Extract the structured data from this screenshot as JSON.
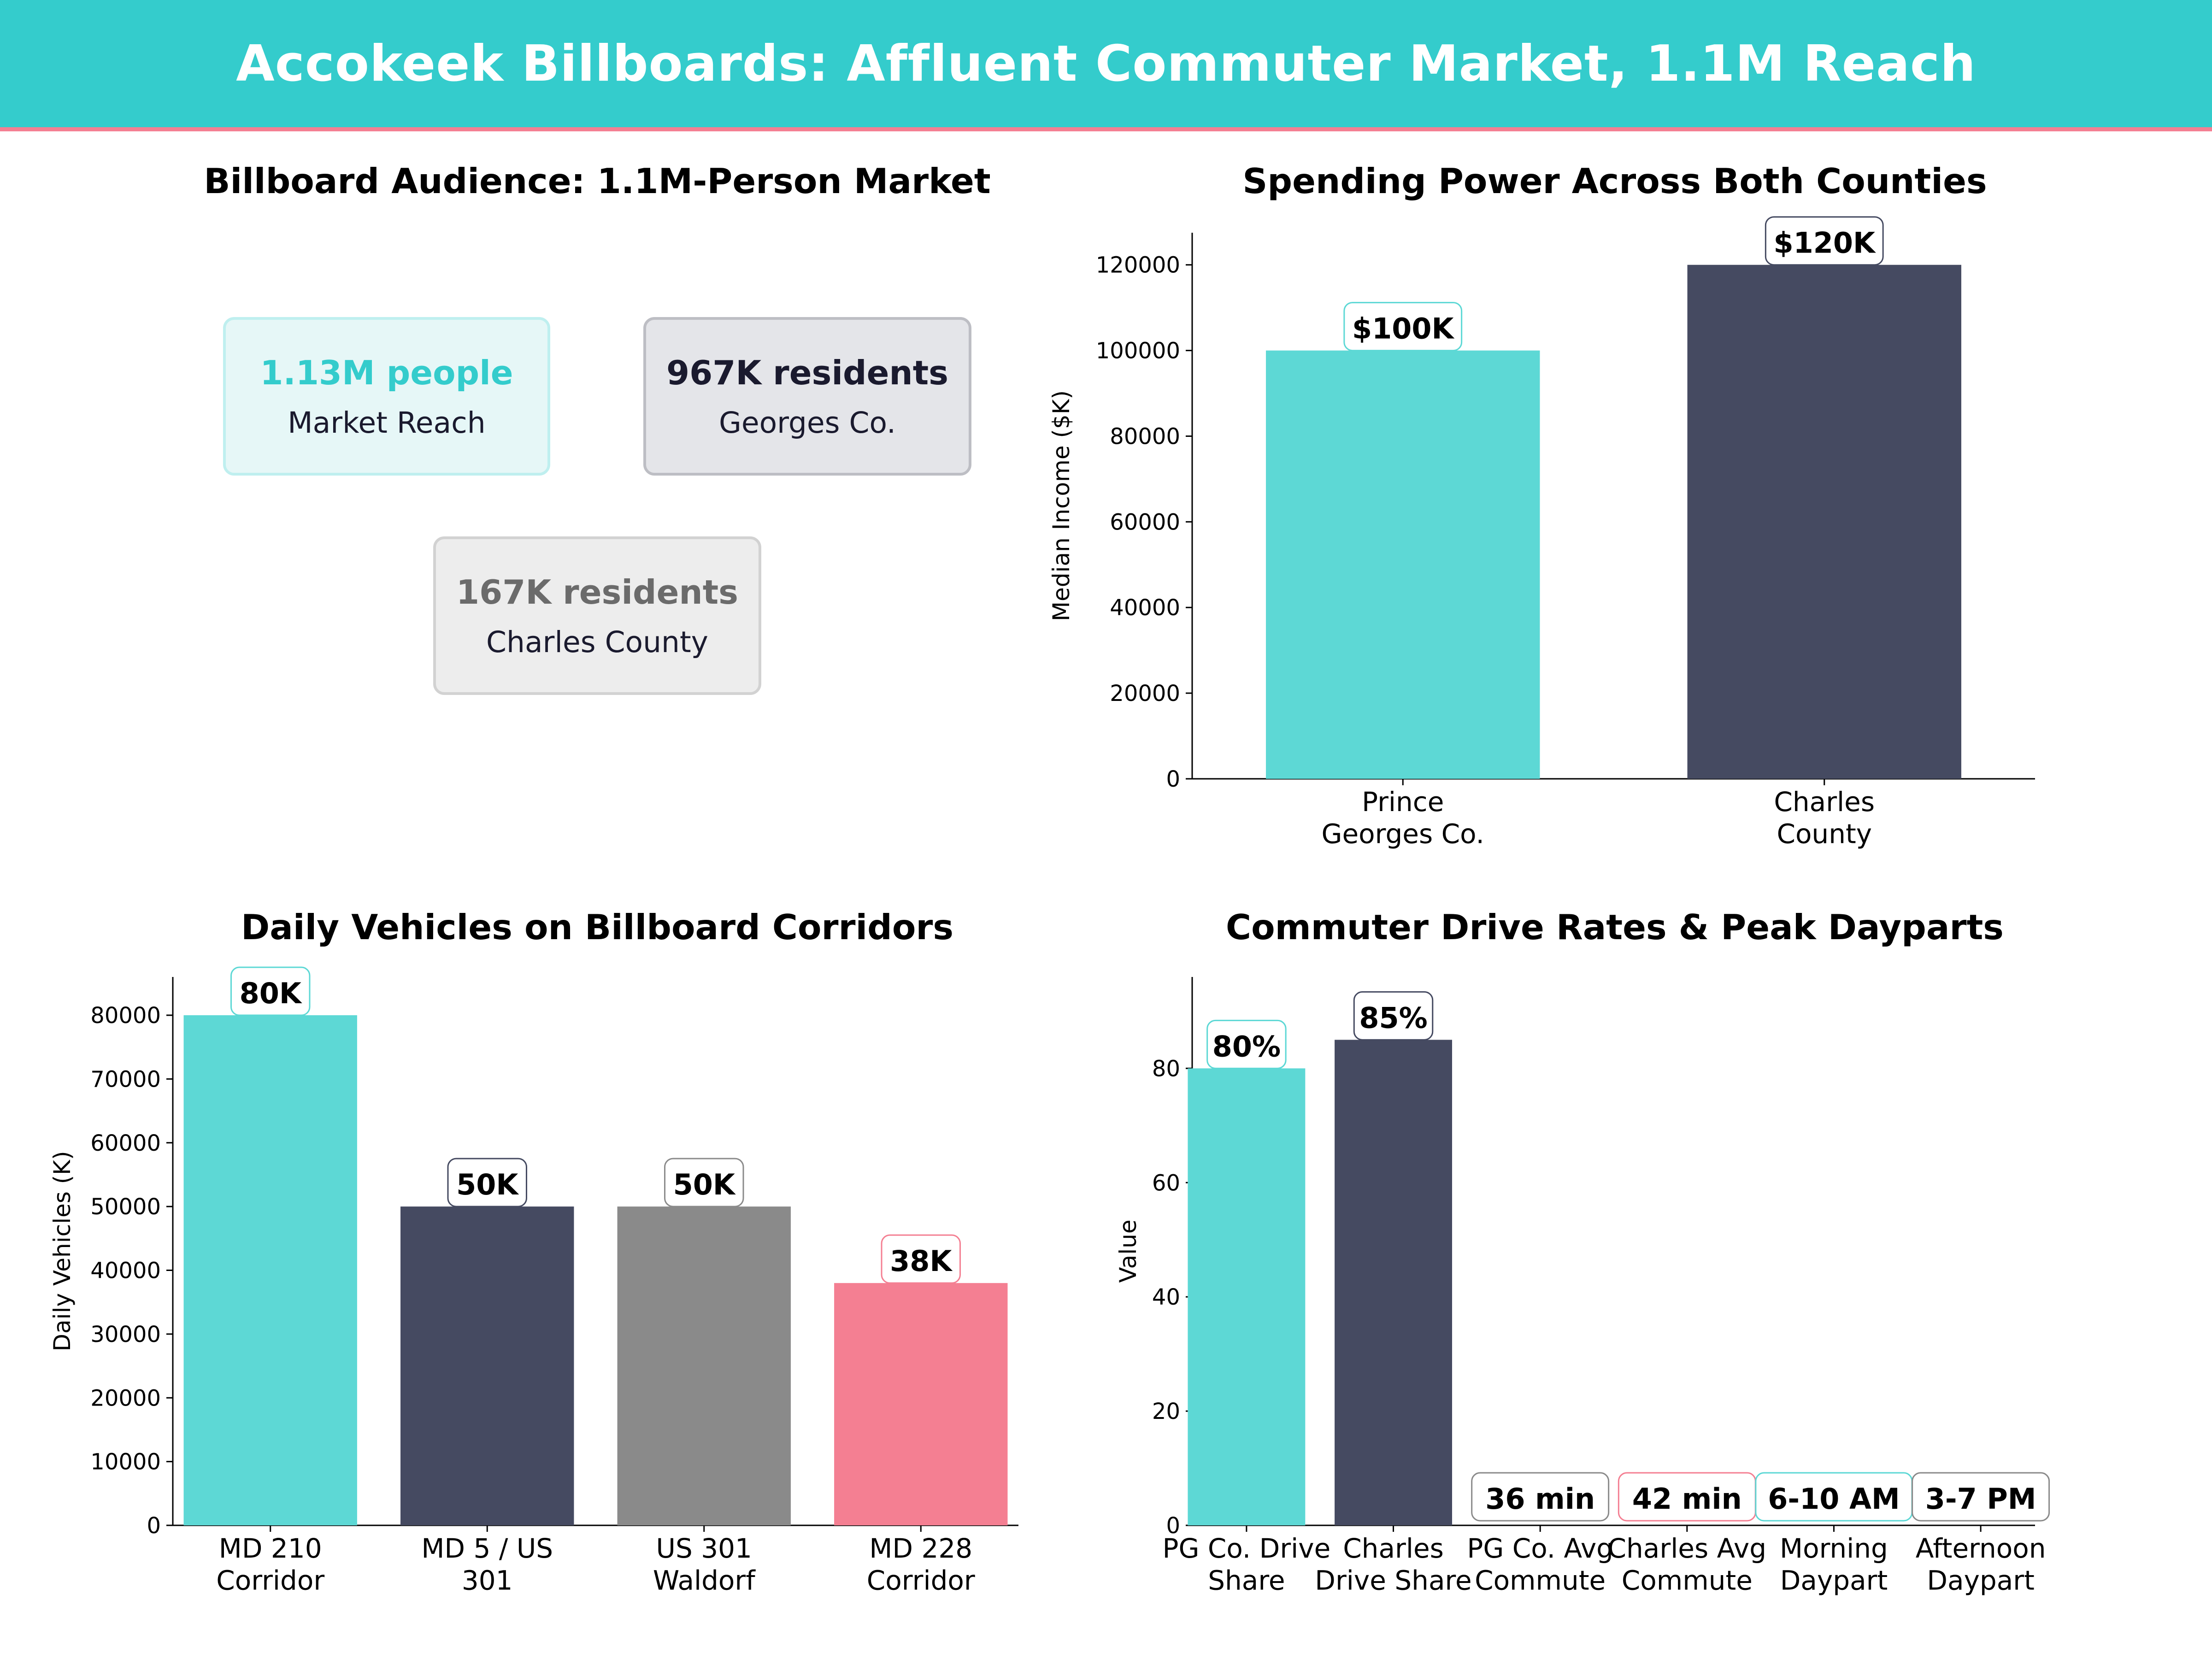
{
  "banner": {
    "title": "Accokeek Billboards: Affluent Commuter Market, 1.1M Reach",
    "background": "#34CCCC",
    "accent_line": "#F47F92"
  },
  "audience": {
    "title": "Billboard Audience: 1.1M-Person Market",
    "cards": [
      {
        "value": "1.13M people",
        "label": "Market Reach",
        "value_color": "#34CCCC",
        "fill": "#E6F7F7",
        "border": "#BFEFEF"
      },
      {
        "value": "967K residents",
        "label": "Georges Co.",
        "value_color": "#1A1A2E",
        "fill": "#E4E5E9",
        "border": "#BDBEC4"
      },
      {
        "value": "167K residents",
        "label": "Charles County",
        "value_color": "#6B6B6B",
        "fill": "#EDEDED",
        "border": "#D2D2D2"
      }
    ]
  },
  "chart_data": [
    {
      "type": "bar",
      "title": "Spending Power Across Both Counties",
      "xlabel": "",
      "ylabel": "Median Income ($K)",
      "categories": [
        "Prince\nGeorges Co.",
        "Charles\nCounty"
      ],
      "values": [
        100000,
        120000
      ],
      "data_labels": [
        "$100K",
        "$120K"
      ],
      "colors": [
        "#5DD8D5",
        "#454A61"
      ],
      "label_borders": [
        "#5DD8D5",
        "#454A61"
      ],
      "yticks": [
        0,
        20000,
        40000,
        60000,
        80000,
        100000,
        120000
      ],
      "ylim": [
        0,
        127500
      ],
      "grid": false
    },
    {
      "type": "bar",
      "title": "Daily Vehicles on Billboard Corridors",
      "xlabel": "",
      "ylabel": "Daily Vehicles (K)",
      "categories": [
        "MD 210\nCorridor",
        "MD 5 / US\n301",
        "US 301\nWaldorf",
        "MD 228\nCorridor"
      ],
      "values": [
        80000,
        50000,
        50000,
        38000
      ],
      "data_labels": [
        "80K",
        "50K",
        "50K",
        "38K"
      ],
      "colors": [
        "#5DD8D5",
        "#454A61",
        "#8A8A8A",
        "#F47F92"
      ],
      "label_borders": [
        "#5DD8D5",
        "#454A61",
        "#8A8A8A",
        "#F47F92"
      ],
      "yticks": [
        0,
        10000,
        20000,
        30000,
        40000,
        50000,
        60000,
        70000,
        80000
      ],
      "ylim": [
        0,
        86000
      ],
      "grid": false
    },
    {
      "type": "bar",
      "title": "Commuter Drive Rates & Peak Dayparts",
      "xlabel": "",
      "ylabel": "Value",
      "categories": [
        "PG Co. Drive\nShare",
        "Charles\nDrive Share",
        "PG Co. Avg\nCommute",
        "Charles Avg\nCommute",
        "Morning\nDaypart",
        "Afternoon\nDaypart"
      ],
      "values": [
        80,
        85,
        0,
        0,
        0,
        0
      ],
      "data_labels": [
        "80%",
        "85%",
        "36 min",
        "42 min",
        "6-10 AM",
        "3-7 PM"
      ],
      "colors": [
        "#5DD8D5",
        "#454A61",
        "#8A8A8A",
        "#F47F92",
        "#5DD8D5",
        "#454A61"
      ],
      "label_borders": [
        "#5DD8D5",
        "#454A61",
        "#8A8A8A",
        "#F47F92",
        "#5DD8D5",
        "#8A8A8A"
      ],
      "yticks": [
        0,
        20,
        40,
        60,
        80
      ],
      "ylim": [
        0,
        96
      ],
      "grid": false
    }
  ]
}
